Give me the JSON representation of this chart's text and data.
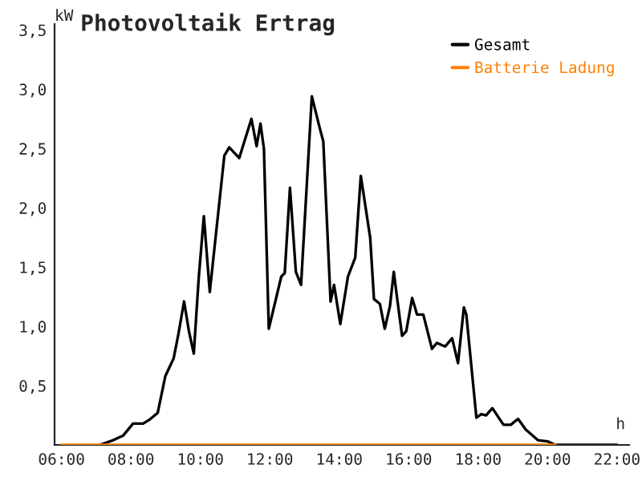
{
  "chart_data": {
    "type": "line",
    "title": "Photovoltaik Ertrag",
    "xlabel": "h",
    "ylabel": "kW",
    "xlim": [
      5.8,
      22.35
    ],
    "ylim": [
      0,
      3.55
    ],
    "xticks": [
      {
        "value": 6,
        "label": "06:00"
      },
      {
        "value": 8,
        "label": "08:00"
      },
      {
        "value": 10,
        "label": "10:00"
      },
      {
        "value": 12,
        "label": "12:00"
      },
      {
        "value": 14,
        "label": "14:00"
      },
      {
        "value": 16,
        "label": "16:00"
      },
      {
        "value": 18,
        "label": "18:00"
      },
      {
        "value": 20,
        "label": "20:00"
      },
      {
        "value": 22,
        "label": "22:00"
      }
    ],
    "yticks": [
      {
        "value": 0,
        "label": null
      },
      {
        "value": 0.5,
        "label": "0,5"
      },
      {
        "value": 1.0,
        "label": "1,0"
      },
      {
        "value": 1.5,
        "label": "1,5"
      },
      {
        "value": 2.0,
        "label": "2,0"
      },
      {
        "value": 2.5,
        "label": "2,5"
      },
      {
        "value": 3.0,
        "label": "3,0"
      },
      {
        "value": 3.5,
        "label": "3,5"
      }
    ],
    "grid": false,
    "legend": "top right",
    "marker": "none",
    "line_style": "solid",
    "series": [
      {
        "name": "Gesamt",
        "color": "#000000",
        "x": [
          7.1,
          7.49,
          7.78,
          8.06,
          8.35,
          8.52,
          8.77,
          8.99,
          9.23,
          9.37,
          9.53,
          9.67,
          9.81,
          9.95,
          10.1,
          10.27,
          10.69,
          10.83,
          11.12,
          11.47,
          11.62,
          11.73,
          11.83,
          11.97,
          12.33,
          12.43,
          12.58,
          12.75,
          12.9,
          13.21,
          13.44,
          13.54,
          13.75,
          13.85,
          14.03,
          14.25,
          14.46,
          14.62,
          14.89,
          15.0,
          15.17,
          15.31,
          15.46,
          15.57,
          15.67,
          15.81,
          15.93,
          16.1,
          16.24,
          16.42,
          16.67,
          16.81,
          17.05,
          17.25,
          17.42,
          17.59,
          17.66,
          17.95,
          18.09,
          18.23,
          18.41,
          18.73,
          18.94,
          19.15,
          19.37,
          19.72,
          20.0,
          20.22,
          22.0
        ],
        "values": [
          0,
          0.04,
          0.08,
          0.18,
          0.18,
          0.21,
          0.27,
          0.58,
          0.73,
          0.94,
          1.21,
          0.96,
          0.77,
          1.4,
          1.93,
          1.29,
          2.44,
          2.51,
          2.42,
          2.75,
          2.52,
          2.71,
          2.5,
          0.98,
          1.42,
          1.45,
          2.17,
          1.46,
          1.35,
          2.94,
          2.67,
          2.56,
          1.21,
          1.35,
          1.02,
          1.42,
          1.58,
          2.27,
          1.75,
          1.23,
          1.19,
          0.98,
          1.17,
          1.46,
          1.23,
          0.92,
          0.96,
          1.24,
          1.1,
          1.1,
          0.81,
          0.86,
          0.83,
          0.9,
          0.69,
          1.16,
          1.1,
          0.23,
          0.26,
          0.25,
          0.31,
          0.17,
          0.17,
          0.22,
          0.13,
          0.04,
          0.03,
          0,
          0
        ]
      },
      {
        "name": "Batterie Ladung",
        "color": "#ff8000",
        "x": [
          6.0,
          20.22
        ],
        "values": [
          0,
          0
        ]
      }
    ]
  }
}
